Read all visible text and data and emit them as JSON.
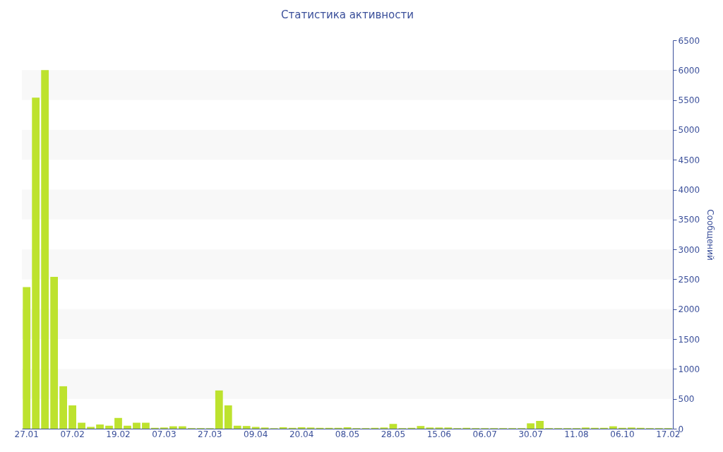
{
  "chart_data": {
    "type": "bar",
    "title": "Статистика активности",
    "ylabel": "Сообщений",
    "categories": [
      "27.01",
      null,
      null,
      null,
      null,
      "07.02",
      null,
      null,
      null,
      null,
      "19.02",
      null,
      null,
      null,
      null,
      "07.03",
      null,
      null,
      null,
      null,
      "27.03",
      null,
      null,
      null,
      null,
      "09.04",
      null,
      null,
      null,
      null,
      "20.04",
      null,
      null,
      null,
      null,
      "08.05",
      null,
      null,
      null,
      null,
      "28.05",
      null,
      null,
      null,
      null,
      "15.06",
      null,
      null,
      null,
      null,
      "06.07",
      null,
      null,
      null,
      null,
      "30.07",
      null,
      null,
      null,
      null,
      "11.08",
      null,
      null,
      null,
      null,
      "06.10",
      null,
      null,
      null,
      null,
      "17.02"
    ],
    "values": [
      2370,
      5540,
      6000,
      2540,
      710,
      390,
      100,
      30,
      70,
      50,
      180,
      50,
      100,
      100,
      15,
      20,
      40,
      40,
      10,
      10,
      10,
      640,
      390,
      50,
      45,
      30,
      20,
      10,
      25,
      15,
      25,
      20,
      15,
      15,
      15,
      25,
      10,
      10,
      15,
      20,
      80,
      10,
      15,
      45,
      20,
      20,
      20,
      10,
      15,
      10,
      10,
      10,
      10,
      10,
      10,
      90,
      130,
      10,
      10,
      10,
      10,
      20,
      15,
      15,
      40,
      15,
      20,
      15,
      10,
      10,
      10
    ],
    "color": "#bde22e",
    "ylim": [
      0,
      6500
    ],
    "yticks": [
      0,
      500,
      1000,
      1500,
      2000,
      2500,
      3000,
      3500,
      4000,
      4500,
      5000,
      5500,
      6000,
      6500
    ],
    "bands": [
      {
        "axis": "y",
        "from": 500,
        "to": 1000,
        "color": "#f8f8f8"
      },
      {
        "axis": "y",
        "from": 1500,
        "to": 2000,
        "color": "#f8f8f8"
      },
      {
        "axis": "y",
        "from": 2500,
        "to": 3000,
        "color": "#f8f8f8"
      },
      {
        "axis": "y",
        "from": 3500,
        "to": 4000,
        "color": "#f8f8f8"
      },
      {
        "axis": "y",
        "from": 4500,
        "to": 5000,
        "color": "#f8f8f8"
      },
      {
        "axis": "y",
        "from": 5500,
        "to": 6000,
        "color": "#f8f8f8"
      }
    ]
  }
}
